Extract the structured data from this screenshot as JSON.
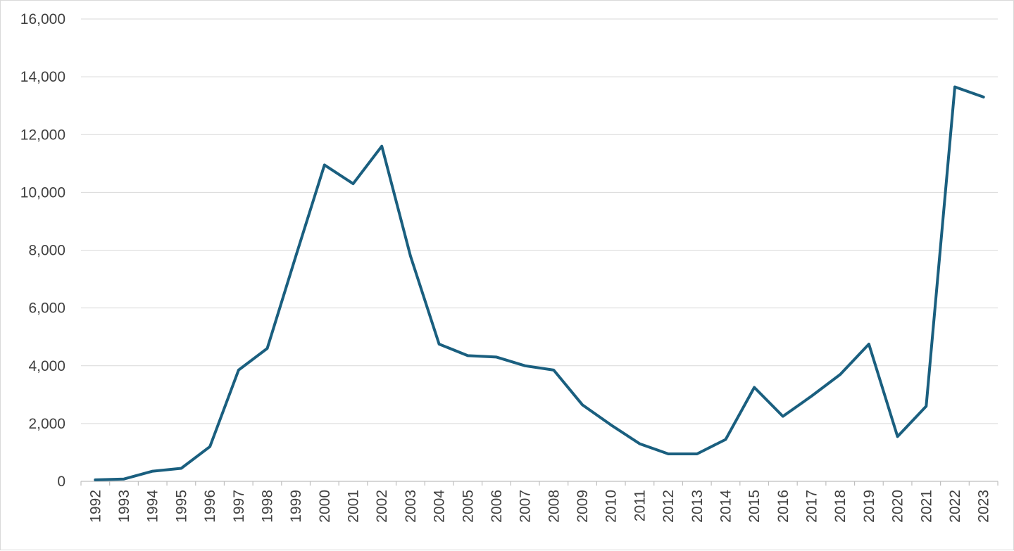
{
  "chart_data": {
    "type": "line",
    "title": "",
    "xlabel": "",
    "ylabel": "",
    "x": [
      "1992",
      "1993",
      "1994",
      "1995",
      "1996",
      "1997",
      "1998",
      "1999",
      "2000",
      "2001",
      "2002",
      "2003",
      "2004",
      "2005",
      "2006",
      "2007",
      "2008",
      "2009",
      "2010",
      "2011",
      "2012",
      "2013",
      "2014",
      "2015",
      "2016",
      "2017",
      "2018",
      "2019",
      "2020",
      "2021",
      "2022",
      "2023"
    ],
    "series": [
      {
        "color": "#1a5f7f",
        "values": [
          50,
          80,
          350,
          450,
          1200,
          3850,
          4600,
          7800,
          10950,
          10300,
          11600,
          7800,
          4750,
          4350,
          4300,
          4000,
          3850,
          2650,
          1950,
          1300,
          950,
          950,
          1450,
          3250,
          2250,
          2950,
          3700,
          4750,
          1550,
          2600,
          13650,
          13300
        ]
      }
    ],
    "ylim": [
      0,
      16000
    ],
    "yticks": [
      0,
      2000,
      4000,
      6000,
      8000,
      10000,
      12000,
      14000,
      16000
    ],
    "ytick_labels": [
      "0",
      "2,000",
      "4,000",
      "6,000",
      "8,000",
      "10,000",
      "12,000",
      "14,000",
      "16,000"
    ],
    "grid": "horizontal",
    "legend": "none"
  }
}
